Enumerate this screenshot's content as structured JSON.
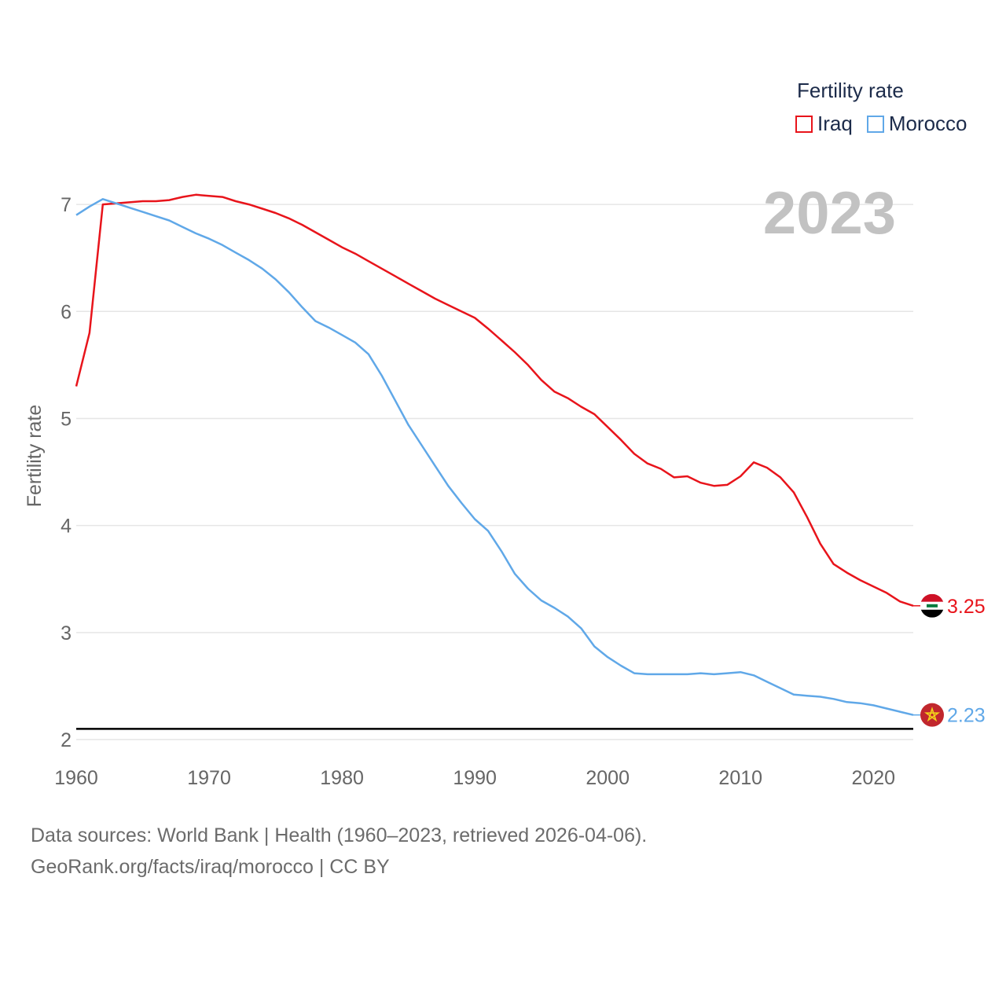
{
  "legend": {
    "title": "Fertility rate",
    "items": [
      {
        "label": "Iraq",
        "color": "#e8141b"
      },
      {
        "label": "Morocco",
        "color": "#60a8e8"
      }
    ]
  },
  "year_label": "2023",
  "footer": {
    "line1": "Data sources: World Bank | Health (1960–2023, retrieved 2026-04-06).",
    "line2": "GeoRank.org/facts/iraq/morocco | CC BY"
  },
  "chart_data": {
    "type": "line",
    "title": "",
    "xlabel": "",
    "ylabel": "Fertility rate",
    "xlim": [
      1960,
      2023
    ],
    "ylim": [
      2,
      7.5
    ],
    "x_ticks": [
      1960,
      1970,
      1980,
      1990,
      2000,
      2010,
      2020
    ],
    "y_ticks": [
      2,
      3,
      4,
      5,
      6,
      7
    ],
    "reference_line": 2.1,
    "grid": true,
    "series": [
      {
        "name": "Iraq",
        "color": "#e8141b",
        "end_label": "3.25",
        "x": [
          1960,
          1961,
          1962,
          1963,
          1964,
          1965,
          1966,
          1967,
          1968,
          1969,
          1970,
          1971,
          1972,
          1973,
          1974,
          1975,
          1976,
          1977,
          1978,
          1979,
          1980,
          1981,
          1982,
          1983,
          1984,
          1985,
          1986,
          1987,
          1988,
          1989,
          1990,
          1991,
          1992,
          1993,
          1994,
          1995,
          1996,
          1997,
          1998,
          1999,
          2000,
          2001,
          2002,
          2003,
          2004,
          2005,
          2006,
          2007,
          2008,
          2009,
          2010,
          2011,
          2012,
          2013,
          2014,
          2015,
          2016,
          2017,
          2018,
          2019,
          2020,
          2021,
          2022,
          2023
        ],
        "values": [
          5.3,
          5.8,
          7.0,
          7.01,
          7.02,
          7.03,
          7.03,
          7.04,
          7.07,
          7.09,
          7.08,
          7.07,
          7.03,
          7.0,
          6.96,
          6.92,
          6.87,
          6.81,
          6.74,
          6.67,
          6.6,
          6.54,
          6.47,
          6.4,
          6.33,
          6.26,
          6.19,
          6.12,
          6.06,
          6.0,
          5.94,
          5.84,
          5.73,
          5.62,
          5.5,
          5.36,
          5.25,
          5.19,
          5.11,
          5.04,
          4.92,
          4.8,
          4.67,
          4.58,
          4.53,
          4.45,
          4.46,
          4.4,
          4.37,
          4.38,
          4.46,
          4.59,
          4.54,
          4.45,
          4.31,
          4.08,
          3.83,
          3.64,
          3.56,
          3.49,
          3.43,
          3.37,
          3.29,
          3.25
        ]
      },
      {
        "name": "Morocco",
        "color": "#60a8e8",
        "end_label": "2.23",
        "x": [
          1960,
          1961,
          1962,
          1963,
          1964,
          1965,
          1966,
          1967,
          1968,
          1969,
          1970,
          1971,
          1972,
          1973,
          1974,
          1975,
          1976,
          1977,
          1978,
          1979,
          1980,
          1981,
          1982,
          1983,
          1984,
          1985,
          1986,
          1987,
          1988,
          1989,
          1990,
          1991,
          1992,
          1993,
          1994,
          1995,
          1996,
          1997,
          1998,
          1999,
          2000,
          2001,
          2002,
          2003,
          2004,
          2005,
          2006,
          2007,
          2008,
          2009,
          2010,
          2011,
          2012,
          2013,
          2014,
          2015,
          2016,
          2017,
          2018,
          2019,
          2020,
          2021,
          2022,
          2023
        ],
        "values": [
          6.9,
          6.98,
          7.05,
          7.01,
          6.97,
          6.93,
          6.89,
          6.85,
          6.79,
          6.73,
          6.68,
          6.62,
          6.55,
          6.48,
          6.4,
          6.3,
          6.18,
          6.04,
          5.91,
          5.85,
          5.78,
          5.71,
          5.6,
          5.4,
          5.17,
          4.94,
          4.75,
          4.56,
          4.37,
          4.21,
          4.06,
          3.95,
          3.76,
          3.55,
          3.41,
          3.3,
          3.23,
          3.15,
          3.04,
          2.87,
          2.77,
          2.69,
          2.62,
          2.61,
          2.61,
          2.61,
          2.61,
          2.62,
          2.61,
          2.62,
          2.63,
          2.6,
          2.54,
          2.48,
          2.42,
          2.41,
          2.4,
          2.38,
          2.35,
          2.34,
          2.32,
          2.29,
          2.26,
          2.23
        ]
      }
    ]
  }
}
